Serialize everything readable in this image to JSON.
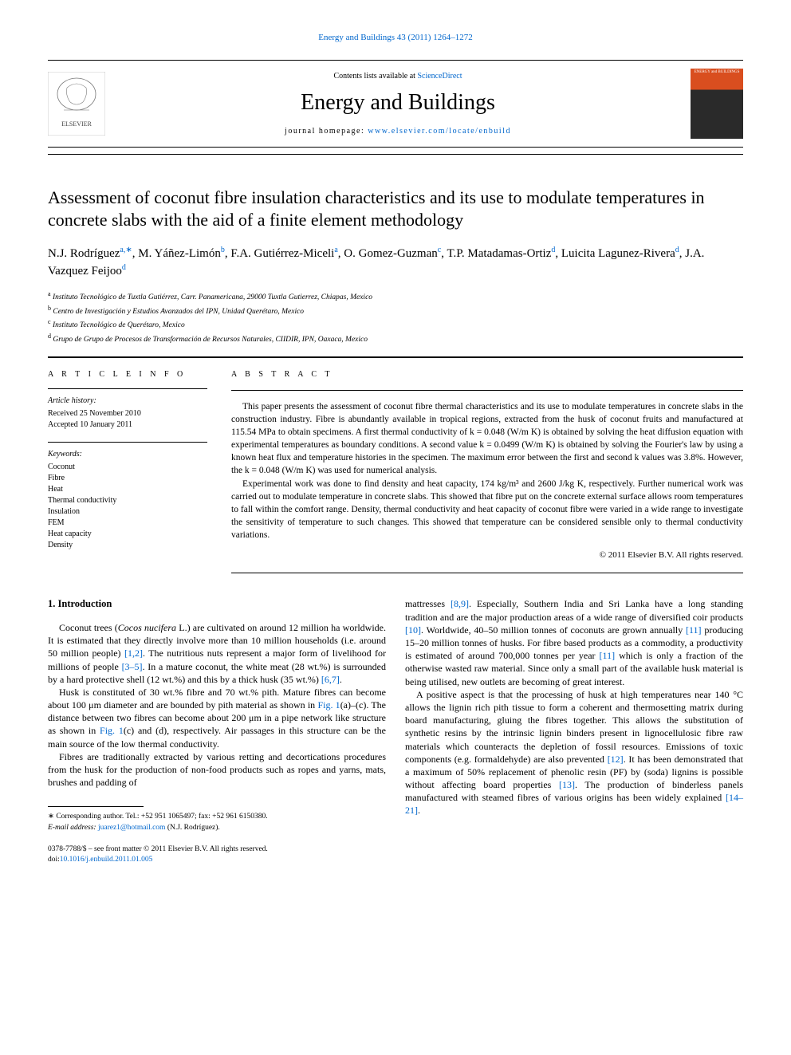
{
  "header": {
    "citation": "Energy and Buildings 43 (2011) 1264–1272",
    "contents_prefix": "Contents lists available at ",
    "contents_link": "ScienceDirect",
    "journal_name": "Energy and Buildings",
    "homepage_prefix": "journal homepage: ",
    "homepage_link": "www.elsevier.com/locate/enbuild",
    "cover_label": "ENERGY and BUILDINGS"
  },
  "article": {
    "title": "Assessment of coconut fibre insulation characteristics and its use to modulate temperatures in concrete slabs with the aid of a finite element methodology",
    "authors_html": "N.J. Rodríguez<sup>a,∗</sup>, M. Yáñez-Limón<sup>b</sup>, F.A. Gutiérrez-Miceli<sup>a</sup>, O. Gomez-Guzman<sup>c</sup>, T.P. Matadamas-Ortiz<sup>d</sup>, Luicita Lagunez-Rivera<sup>d</sup>, J.A. Vazquez Feijoo<sup>d</sup>",
    "affiliations": [
      {
        "sup": "a",
        "text": "Instituto Tecnológico de Tuxtla Gutiérrez, Carr. Panamericana, 29000 Tuxtla Gutierrez, Chiapas, Mexico"
      },
      {
        "sup": "b",
        "text": "Centro de Investigación y Estudios Avanzados del IPN, Unidad Querétaro, Mexico"
      },
      {
        "sup": "c",
        "text": "Instituto Tecnológico de Querétaro, Mexico"
      },
      {
        "sup": "d",
        "text": "Grupo de Grupo de Procesos de Transformación de Recursos Naturales, CIIDIR, IPN, Oaxaca, Mexico"
      }
    ]
  },
  "info": {
    "heading": "a r t i c l e   i n f o",
    "history_label": "Article history:",
    "received": "Received 25 November 2010",
    "accepted": "Accepted 10 January 2011",
    "keywords_label": "Keywords:",
    "keywords": [
      "Coconut",
      "Fibre",
      "Heat",
      "Thermal conductivity",
      "Insulation",
      "FEM",
      "Heat capacity",
      "Density"
    ]
  },
  "abstract": {
    "heading": "a b s t r a c t",
    "p1": "This paper presents the assessment of coconut fibre thermal characteristics and its use to modulate temperatures in concrete slabs in the construction industry. Fibre is abundantly available in tropical regions, extracted from the husk of coconut fruits and manufactured at 115.54 MPa to obtain specimens. A first thermal conductivity of k = 0.048 (W/m K) is obtained by solving the heat diffusion equation with experimental temperatures as boundary conditions. A second value k = 0.0499 (W/m K) is obtained by solving the Fourier's law by using a known heat flux and temperature histories in the specimen. The maximum error between the first and second k values was 3.8%. However, the k = 0.048 (W/m K) was used for numerical analysis.",
    "p2": "Experimental work was done to find density and heat capacity, 174 kg/m³ and 2600 J/kg K, respectively. Further numerical work was carried out to modulate temperature in concrete slabs. This showed that fibre put on the concrete external surface allows room temperatures to fall within the comfort range. Density, thermal conductivity and heat capacity of coconut fibre were varied in a wide range to investigate the sensitivity of temperature to such changes. This showed that temperature can be considered sensible only to thermal conductivity variations.",
    "copyright": "© 2011 Elsevier B.V. All rights reserved."
  },
  "body": {
    "section1_head": "1.  Introduction",
    "col1_p1_a": "Coconut trees (",
    "col1_p1_i": "Cocos nucifera",
    "col1_p1_b": " L.) are cultivated on around 12 million ha worldwide. It is estimated that they directly involve more than 10 million households (i.e. around 50 million people) ",
    "col1_p1_ref1": "[1,2]",
    "col1_p1_c": ". The nutritious nuts represent a major form of livelihood for millions of people ",
    "col1_p1_ref2": "[3–5]",
    "col1_p1_d": ". In a mature coconut, the white meat (28 wt.%) is surrounded by a hard protective shell (12 wt.%) and this by a thick husk (35 wt.%) ",
    "col1_p1_ref3": "[6,7]",
    "col1_p1_e": ".",
    "col1_p2_a": "Husk is constituted of 30 wt.% fibre and 70 wt.% pith. Mature fibres can become about 100 μm diameter and are bounded by pith material as shown in ",
    "col1_p2_ref1": "Fig. 1",
    "col1_p2_b": "(a)–(c). The distance between two fibres can become about 200 μm in a pipe network like structure as shown in ",
    "col1_p2_ref2": "Fig. 1",
    "col1_p2_c": "(c) and (d), respectively. Air passages in this structure can be the main source of the low thermal conductivity.",
    "col1_p3": "Fibres are traditionally extracted by various retting and decortications procedures from the husk for the production of non-food products such as ropes and yarns, mats, brushes and padding of",
    "col2_p1_a": "mattresses ",
    "col2_p1_ref1": "[8,9]",
    "col2_p1_b": ". Especially, Southern India and Sri Lanka have a long standing tradition and are the major production areas of a wide range of diversified coir products ",
    "col2_p1_ref2": "[10]",
    "col2_p1_c": ". Worldwide, 40–50 million tonnes of coconuts are grown annually ",
    "col2_p1_ref3": "[11]",
    "col2_p1_d": " producing 15–20 million tonnes of husks. For fibre based products as a commodity, a productivity is estimated of around 700,000 tonnes per year ",
    "col2_p1_ref4": "[11]",
    "col2_p1_e": " which is only a fraction of the otherwise wasted raw material. Since only a small part of the available husk material is being utilised, new outlets are becoming of great interest.",
    "col2_p2_a": "A positive aspect is that the processing of husk at high temperatures near 140 °C allows the lignin rich pith tissue to form a coherent and thermosetting matrix during board manufacturing, gluing the fibres together. This allows the substitution of synthetic resins by the intrinsic lignin binders present in lignocellulosic fibre raw materials which counteracts the depletion of fossil resources. Emissions of toxic components (e.g. formaldehyde) are also prevented ",
    "col2_p2_ref1": "[12]",
    "col2_p2_b": ". It has been demonstrated that a maximum of 50% replacement of phenolic resin (PF) by (soda) lignins is possible without affecting board properties ",
    "col2_p2_ref2": "[13]",
    "col2_p2_c": ". The production of binderless panels manufactured with steamed fibres of various origins has been widely explained ",
    "col2_p2_ref3": "[14–21]",
    "col2_p2_d": "."
  },
  "footnotes": {
    "corr": "∗ Corresponding author. Tel.: +52 951 1065497; fax: +52 961 6150380.",
    "email_label": "E-mail address: ",
    "email": "juarez1@hotmail.com",
    "email_name": " (N.J. Rodríguez)."
  },
  "bottom": {
    "issn": "0378-7788/$ – see front matter © 2011 Elsevier B.V. All rights reserved.",
    "doi_prefix": "doi:",
    "doi": "10.1016/j.enbuild.2011.01.005"
  },
  "colors": {
    "link": "#0066cc",
    "cover_top": "#d94e1f",
    "cover_bottom": "#2a2a2a"
  }
}
